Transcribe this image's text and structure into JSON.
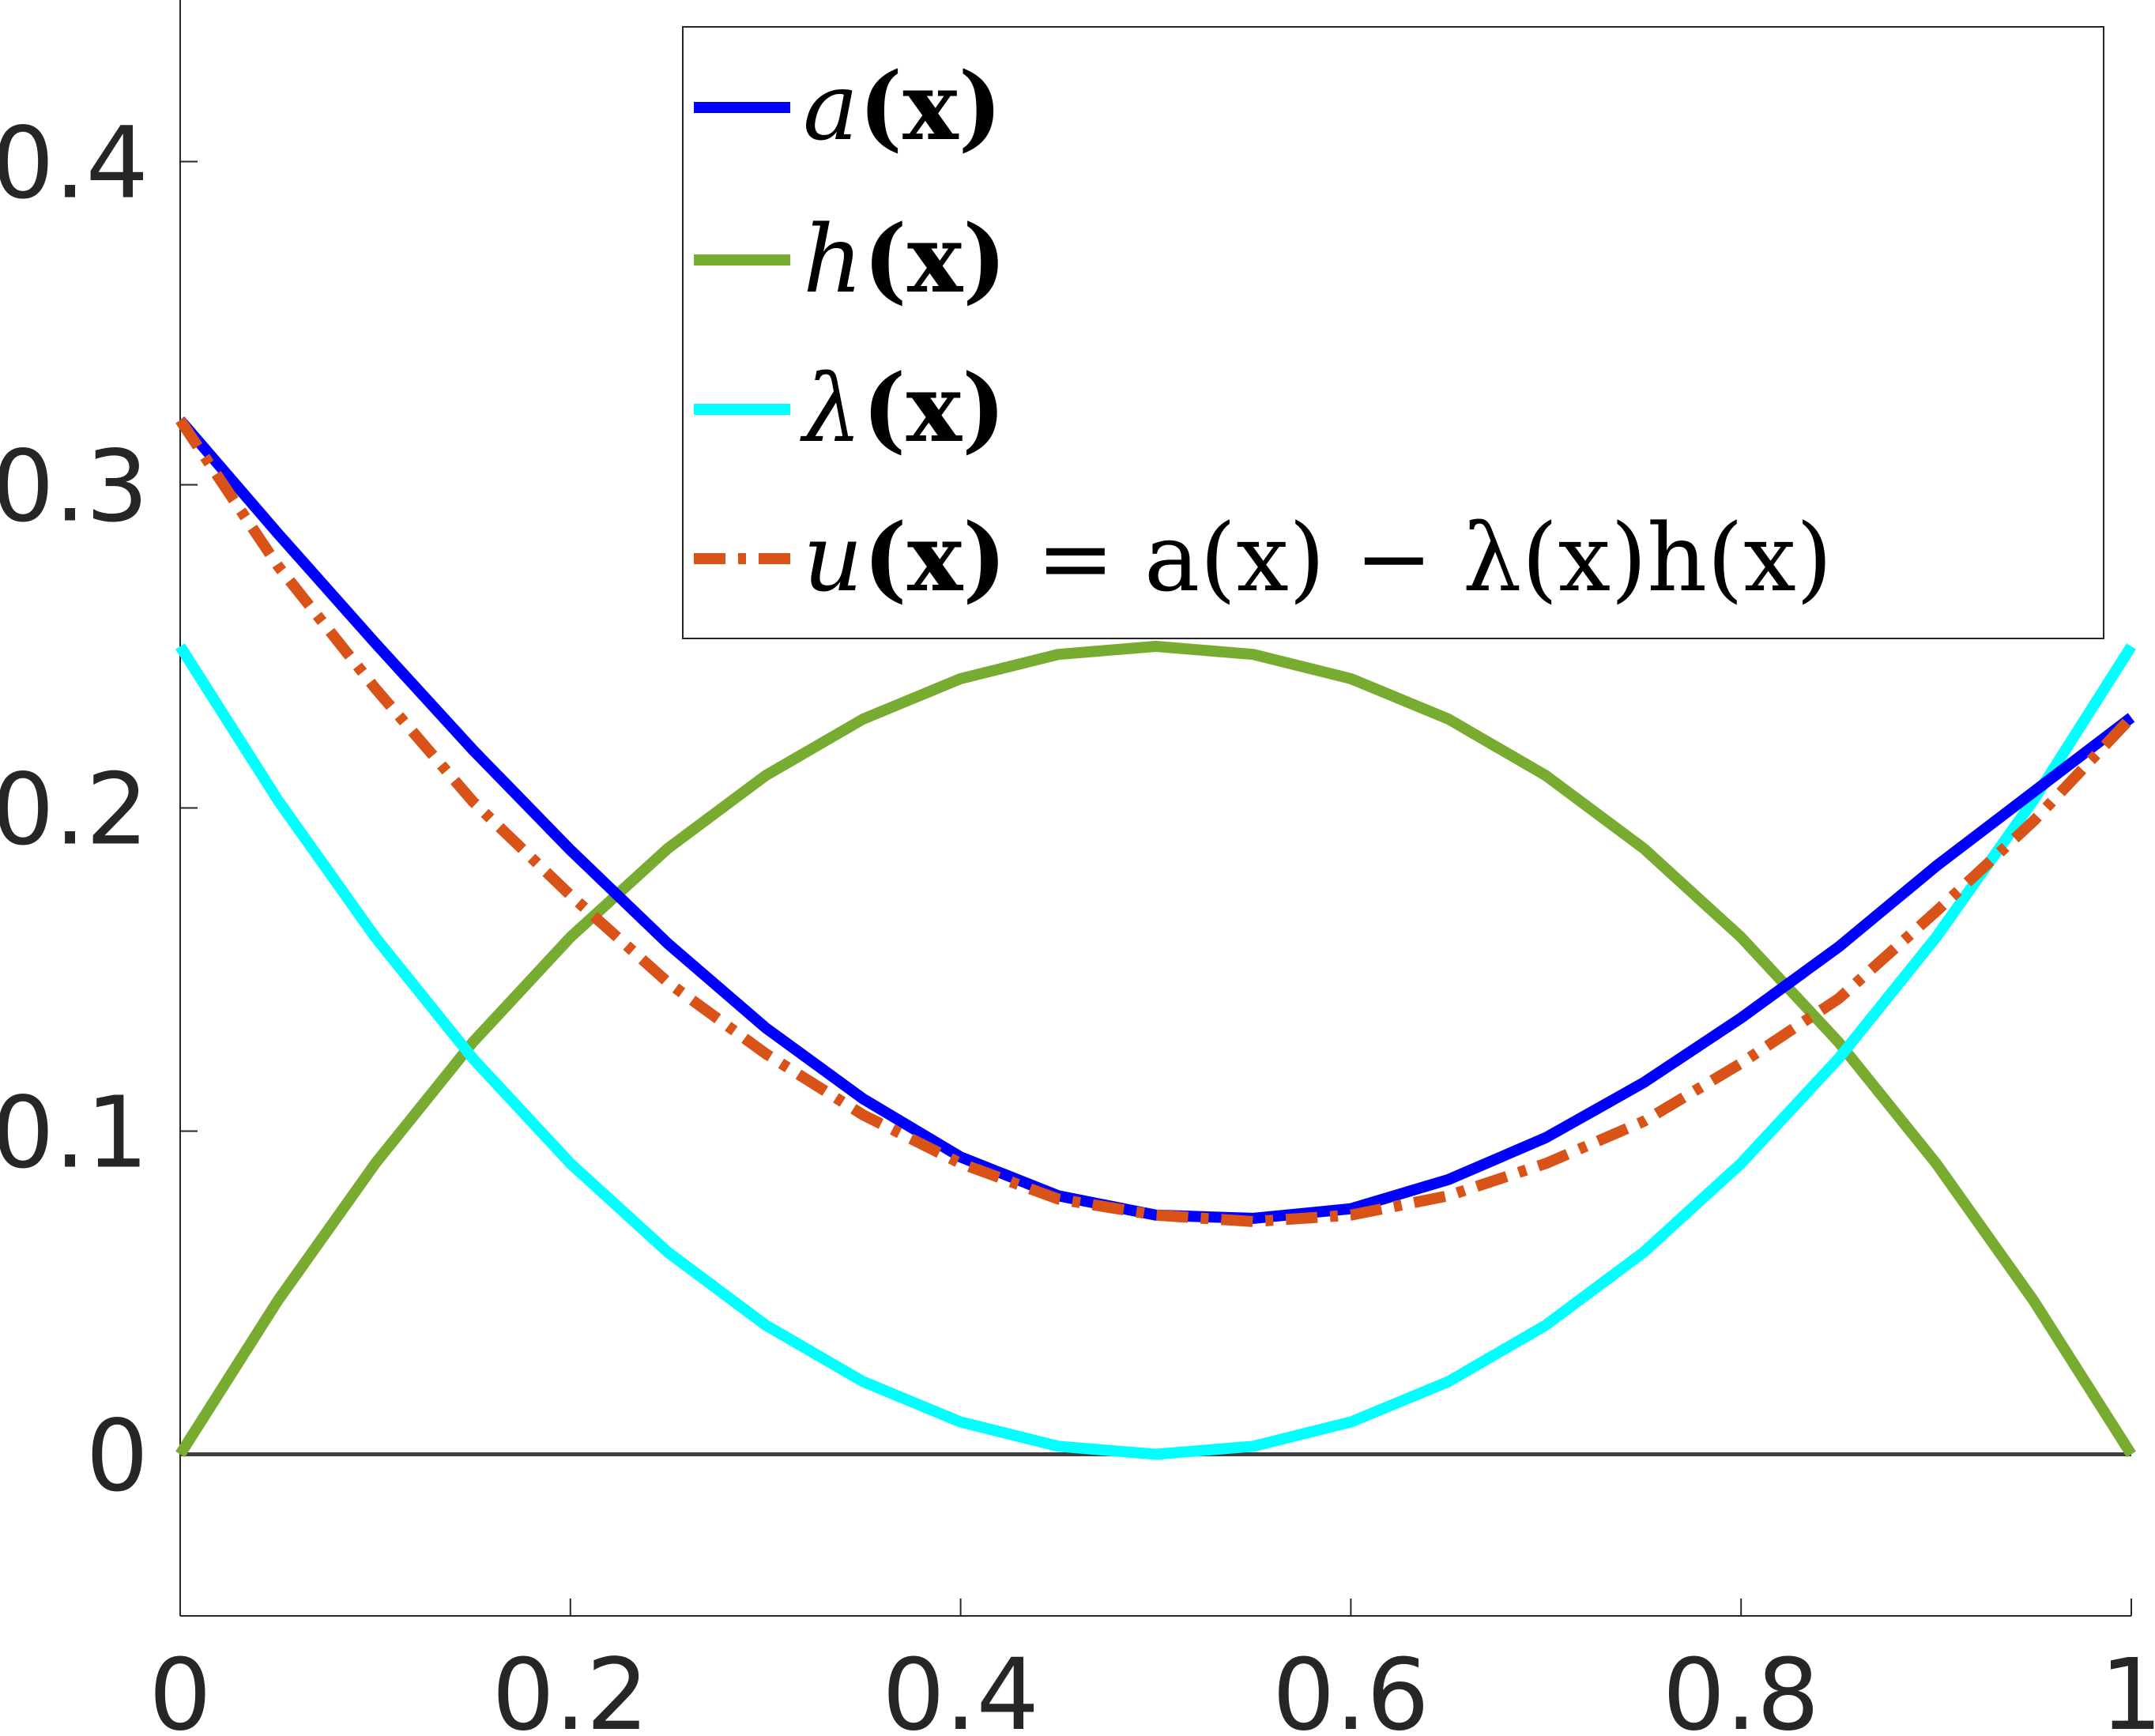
{
  "chart_data": {
    "type": "line",
    "title": "",
    "xlabel": "",
    "ylabel": "",
    "xlim": [
      0,
      1
    ],
    "ylim": [
      -0.05,
      0.45
    ],
    "xticks": [
      0,
      0.2,
      0.4,
      0.6,
      0.8,
      1
    ],
    "xtick_labels": [
      "0",
      "0.2",
      "0.4",
      "0.6",
      "0.8",
      "1"
    ],
    "yticks": [
      0,
      0.1,
      0.2,
      0.3,
      0.4
    ],
    "ytick_labels": [
      "0",
      "0.1",
      "0.2",
      "0.3",
      "0.4"
    ],
    "grid": false,
    "legend_position": "top-right",
    "reference_line": {
      "y": 0,
      "color": "#404040"
    },
    "x": [
      0,
      0.05,
      0.1,
      0.15,
      0.2,
      0.25,
      0.3,
      0.35,
      0.4,
      0.45,
      0.5,
      0.55,
      0.6,
      0.65,
      0.7,
      0.75,
      0.8,
      0.85,
      0.9,
      0.95,
      1
    ],
    "series": [
      {
        "name": "a(x)",
        "color": "#0000ff",
        "style": "solid",
        "values": [
          0.32,
          0.285,
          0.251,
          0.218,
          0.187,
          0.158,
          0.132,
          0.11,
          0.092,
          0.08,
          0.074,
          0.073,
          0.076,
          0.085,
          0.098,
          0.115,
          0.135,
          0.157,
          0.182,
          0.205,
          0.228
        ]
      },
      {
        "name": "h(x)",
        "color": "#77ac30",
        "style": "solid",
        "values": [
          0,
          0.0475,
          0.09,
          0.1275,
          0.16,
          0.1875,
          0.21,
          0.2275,
          0.24,
          0.2475,
          0.25,
          0.2475,
          0.24,
          0.2275,
          0.21,
          0.1875,
          0.16,
          0.1275,
          0.09,
          0.0475,
          0
        ]
      },
      {
        "name": "λ(x)",
        "color": "#00ffff",
        "style": "solid",
        "values": [
          0.25,
          0.2025,
          0.16,
          0.1225,
          0.09,
          0.0625,
          0.04,
          0.0225,
          0.01,
          0.0025,
          0,
          0.0025,
          0.01,
          0.0225,
          0.04,
          0.0625,
          0.09,
          0.1225,
          0.16,
          0.2025,
          0.25
        ]
      },
      {
        "name": "u(x) = a(x) − λ(x)h(x)",
        "color": "#d95319",
        "style": "dashdot",
        "values": [
          0.32,
          0.275,
          0.237,
          0.202,
          0.173,
          0.146,
          0.124,
          0.105,
          0.09,
          0.079,
          0.074,
          0.072,
          0.074,
          0.08,
          0.09,
          0.103,
          0.121,
          0.141,
          0.168,
          0.196,
          0.228
        ]
      }
    ]
  },
  "legend": {
    "items": [
      {
        "fn": "a",
        "arg": "(x)",
        "eq": ""
      },
      {
        "fn": "h",
        "arg": "(x)",
        "eq": ""
      },
      {
        "fn": "λ",
        "arg": "(x)",
        "eq": ""
      },
      {
        "fn": "u",
        "arg": "(x)",
        "eq": " = a(x) − λ(x)h(x)"
      }
    ]
  }
}
